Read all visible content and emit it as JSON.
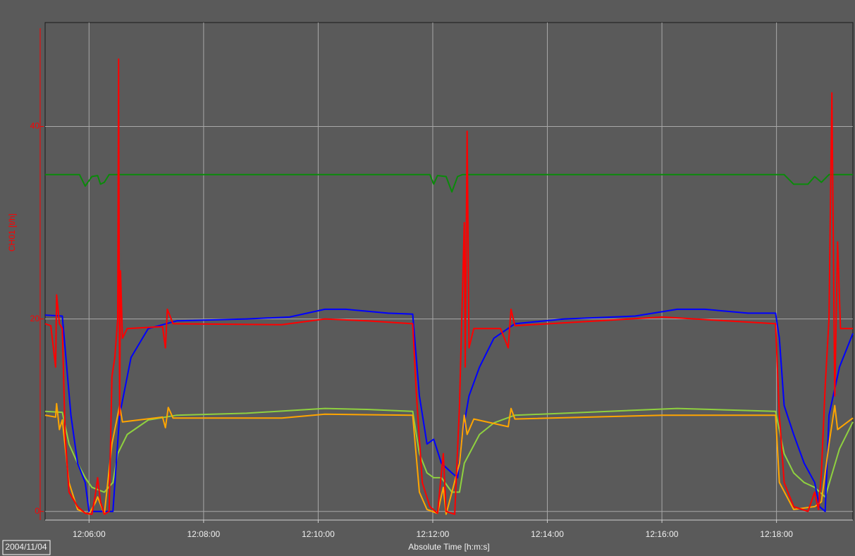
{
  "chart_data": {
    "type": "line",
    "date_label": "2004/11/04",
    "x_label": "Absolute Time [h:m:s]",
    "y_label": "CH01 [t/h]",
    "xlim": [
      "12:05:14",
      "12:19:20"
    ],
    "xticks": [
      "12:06:00",
      "12:08:00",
      "12:10:00",
      "12:12:00",
      "12:14:00",
      "12:16:00",
      "12:18:00"
    ],
    "ylim": [
      -0.9,
      50.8
    ],
    "yticks": [
      0,
      20,
      40
    ],
    "grid": true,
    "y_axis_color": "#ff0000",
    "series": [
      {
        "color": "#0a8a0a",
        "x": [
          "12:05:14",
          "12:05:50",
          "12:05:56",
          "12:06:03",
          "12:06:09",
          "12:06:12",
          "12:06:16",
          "12:06:21",
          "12:11:57",
          "12:12:01",
          "12:12:05",
          "12:12:14",
          "12:12:20",
          "12:12:26",
          "12:12:31",
          "12:18:08",
          "12:18:18",
          "12:18:33",
          "12:18:40",
          "12:18:47",
          "12:18:55",
          "12:19:20"
        ],
        "values": [
          35,
          35,
          33.8,
          34.8,
          34.9,
          34,
          34.2,
          35,
          35,
          34,
          34.9,
          34.8,
          33.2,
          34.8,
          35,
          35,
          34,
          34,
          34.8,
          34.2,
          35,
          35
        ]
      },
      {
        "color": "#8fd13f",
        "x": [
          "12:05:14",
          "12:05:32",
          "12:05:39",
          "12:05:48",
          "12:05:56",
          "12:06:03",
          "12:06:16",
          "12:06:25",
          "12:06:30",
          "12:06:40",
          "12:07:02",
          "12:07:32",
          "12:08:45",
          "12:10:07",
          "12:10:51",
          "12:11:39",
          "12:11:46",
          "12:11:54",
          "12:12:01",
          "12:12:09",
          "12:12:20",
          "12:12:28",
          "12:12:33",
          "12:12:49",
          "12:13:04",
          "12:13:26",
          "12:14:18",
          "12:16:16",
          "12:17:59",
          "12:18:08",
          "12:18:18",
          "12:18:29",
          "12:18:40",
          "12:18:51",
          "12:19:06",
          "12:19:20"
        ],
        "values": [
          10.4,
          10.3,
          7,
          5,
          3.5,
          2.5,
          2,
          3,
          6,
          8,
          9.5,
          10,
          10.2,
          10.7,
          10.6,
          10.4,
          6,
          4,
          3.5,
          3.5,
          2,
          2,
          5,
          8,
          9.2,
          10,
          10.2,
          10.7,
          10.4,
          6,
          4,
          3,
          2.5,
          1.5,
          6.5,
          9.3
        ]
      },
      {
        "color": "#0000ff",
        "x": [
          "12:05:14",
          "12:05:32",
          "12:05:41",
          "12:05:48",
          "12:05:56",
          "12:06:00",
          "12:06:25",
          "12:06:32",
          "12:06:44",
          "12:07:02",
          "12:07:32",
          "12:08:45",
          "12:09:30",
          "12:10:07",
          "12:10:29",
          "12:11:13",
          "12:11:39",
          "12:11:46",
          "12:11:54",
          "12:12:01",
          "12:12:09",
          "12:12:20",
          "12:12:26",
          "12:12:31",
          "12:12:38",
          "12:12:49",
          "12:13:04",
          "12:13:26",
          "12:14:18",
          "12:15:32",
          "12:16:16",
          "12:16:45",
          "12:17:30",
          "12:17:59",
          "12:18:03",
          "12:18:08",
          "12:18:18",
          "12:18:29",
          "12:18:40",
          "12:18:45",
          "12:18:51",
          "12:18:55",
          "12:19:06",
          "12:19:20"
        ],
        "values": [
          20.4,
          20.3,
          10,
          5,
          3,
          0,
          0,
          10,
          16,
          19,
          19.8,
          20,
          20.2,
          21,
          21,
          20.6,
          20.5,
          12,
          7,
          7.5,
          5,
          4,
          3.5,
          8,
          12,
          15,
          18,
          19.5,
          20,
          20.3,
          21,
          21,
          20.6,
          20.6,
          18,
          11,
          8,
          5,
          3,
          0.5,
          0,
          10,
          15,
          18.5
        ]
      },
      {
        "color": "#ffa500",
        "x": [
          "12:05:14",
          "12:05:25",
          "12:05:26",
          "12:05:29",
          "12:05:32",
          "12:05:39",
          "12:05:48",
          "12:06:00",
          "12:06:07",
          "12:06:09",
          "12:06:16",
          "12:06:24",
          "12:06:30",
          "12:06:32",
          "12:06:35",
          "12:07:17",
          "12:07:20",
          "12:07:23",
          "12:07:28",
          "12:09:22",
          "12:10:07",
          "12:11:39",
          "12:11:46",
          "12:11:54",
          "12:12:05",
          "12:12:11",
          "12:12:14",
          "12:12:28",
          "12:12:33",
          "12:12:36",
          "12:12:43",
          "12:13:19",
          "12:13:22",
          "12:13:26",
          "12:16:01",
          "12:17:59",
          "12:18:03",
          "12:18:18",
          "12:18:40",
          "12:18:47",
          "12:18:55",
          "12:19:01",
          "12:19:04",
          "12:19:20"
        ],
        "values": [
          10,
          9.8,
          11.2,
          8.5,
          9.5,
          3,
          0.2,
          -0.3,
          1,
          1.5,
          -0.3,
          7,
          10,
          11,
          9.3,
          9.8,
          8.7,
          10.8,
          9.7,
          9.7,
          10.1,
          10,
          2,
          0.2,
          -0.2,
          2.5,
          -0.3,
          5,
          10,
          8,
          9.6,
          8.8,
          10.7,
          9.6,
          10,
          10,
          3,
          0.2,
          0.5,
          1,
          7,
          11,
          8.5,
          9.7
        ]
      },
      {
        "color": "#ff0000",
        "x": [
          "12:05:14",
          "12:05:20",
          "12:05:25",
          "12:05:26",
          "12:05:29",
          "12:05:32",
          "12:05:35",
          "12:05:39",
          "12:05:48",
          "12:05:56",
          "12:06:03",
          "12:06:07",
          "12:06:09",
          "12:06:12",
          "12:06:16",
          "12:06:21",
          "12:06:24",
          "12:06:27",
          "12:06:30",
          "12:06:31",
          "12:06:32",
          "12:06:33",
          "12:06:35",
          "12:06:40",
          "12:07:17",
          "12:07:20",
          "12:07:22",
          "12:07:28",
          "12:09:22",
          "12:10:07",
          "12:10:51",
          "12:11:39",
          "12:11:43",
          "12:11:49",
          "12:11:57",
          "12:12:05",
          "12:12:11",
          "12:12:14",
          "12:12:23",
          "12:12:28",
          "12:12:33",
          "12:12:34",
          "12:12:36",
          "12:12:38",
          "12:12:43",
          "12:13:11",
          "12:13:19",
          "12:13:22",
          "12:13:26",
          "12:16:01",
          "12:17:59",
          "12:18:03",
          "12:18:08",
          "12:18:18",
          "12:18:33",
          "12:18:40",
          "12:18:44",
          "12:18:47",
          "12:18:51",
          "12:18:55",
          "12:18:58",
          "12:19:01",
          "12:19:04",
          "12:19:07",
          "12:19:20"
        ],
        "values": [
          19.5,
          19.3,
          15,
          22.5,
          19.5,
          19,
          8,
          2,
          0.5,
          -0.2,
          -0.3,
          2,
          3.5,
          1,
          -0.3,
          0,
          14,
          16,
          20,
          47,
          10,
          25,
          18,
          19,
          19.2,
          17,
          21,
          19.5,
          19.4,
          20,
          19.8,
          19.5,
          12,
          3,
          0.5,
          -0.2,
          6,
          0,
          -0.3,
          11,
          30,
          15,
          39.5,
          17,
          19,
          19,
          17,
          21,
          19.3,
          20.2,
          19.5,
          10,
          3,
          0.5,
          0,
          2,
          0.2,
          4,
          13,
          20,
          43.5,
          12,
          28,
          19,
          19
        ]
      }
    ]
  }
}
